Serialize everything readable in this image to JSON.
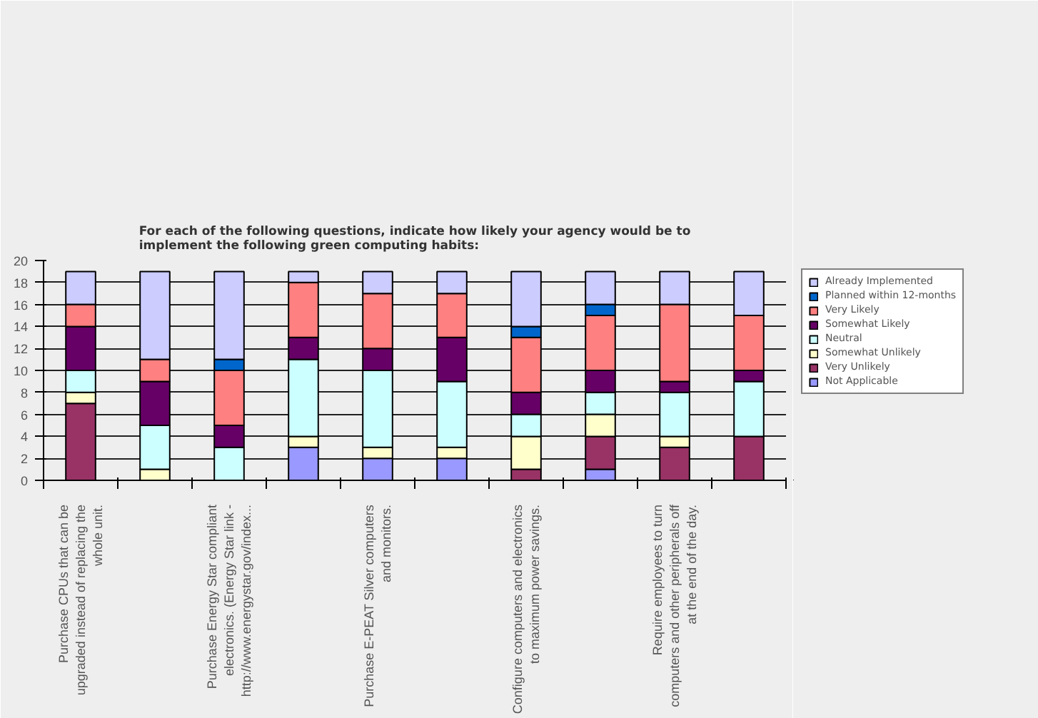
{
  "chart_data": {
    "type": "bar",
    "stacked": true,
    "title": "For each of the following questions, indicate how likely your agency would be to\nimplement the following green computing habits:",
    "categories": [
      "Purchase CPUs that can be\nupgraded instead of replacing the\nwhole unit.",
      null,
      "Purchase Energy Star compliant\nelectronics. (Energy Star link -\nhttp://www.energystar.gov/index...",
      null,
      "Purchase E-PEAT Silver computers\nand monitors.",
      null,
      "Configure computers and electronics\nto maximum power savings.",
      null,
      "Require employees to turn\ncomputers and other peripherals off\nat the end of the day.",
      null
    ],
    "series": [
      {
        "name": "Not Applicable",
        "color": "#9999ff",
        "values": [
          0,
          0,
          0,
          3,
          2,
          2,
          0,
          1,
          0,
          0
        ]
      },
      {
        "name": "Very Unlikely",
        "color": "#993366",
        "values": [
          7,
          0,
          0,
          0,
          0,
          0,
          1,
          3,
          3,
          4
        ]
      },
      {
        "name": "Somewhat Unlikely",
        "color": "#ffffcc",
        "values": [
          1,
          1,
          0,
          1,
          1,
          1,
          3,
          2,
          1,
          0
        ]
      },
      {
        "name": "Neutral",
        "color": "#ccffff",
        "values": [
          2,
          4,
          3,
          7,
          7,
          6,
          2,
          2,
          4,
          5
        ]
      },
      {
        "name": "Somewhat Likely",
        "color": "#660066",
        "values": [
          4,
          4,
          2,
          2,
          2,
          4,
          2,
          2,
          1,
          1
        ]
      },
      {
        "name": "Very Likely",
        "color": "#ff8080",
        "values": [
          2,
          2,
          5,
          5,
          5,
          4,
          5,
          5,
          7,
          5
        ]
      },
      {
        "name": "Planned within 12-months",
        "color": "#0066cc",
        "values": [
          0,
          0,
          1,
          0,
          0,
          0,
          1,
          1,
          0,
          0
        ]
      },
      {
        "name": "Already Implemented",
        "color": "#ccccff",
        "values": [
          3,
          8,
          8,
          1,
          2,
          2,
          5,
          3,
          3,
          4
        ]
      }
    ],
    "ylim": [
      0,
      20
    ],
    "yticks": [
      0,
      2,
      4,
      6,
      8,
      10,
      12,
      14,
      16,
      18,
      20
    ],
    "grid": "y",
    "legend": "right"
  }
}
